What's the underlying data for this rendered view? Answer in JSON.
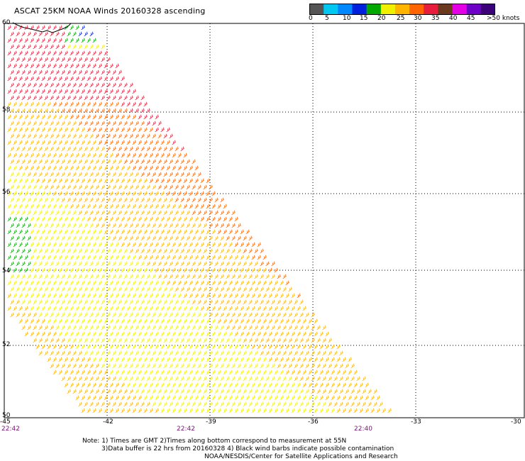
{
  "title": "ASCAT 25KM NOAA Winds 20160328 ascending",
  "legend": {
    "labels": [
      "0",
      "5",
      "10",
      "15",
      "20",
      "25",
      "30",
      "35",
      "40",
      "45",
      ">50 knots"
    ],
    "colors": [
      "#555555",
      "#00c8f0",
      "#0088ff",
      "#0020e0",
      "#00a800",
      "#f0f000",
      "#ffb400",
      "#ff6400",
      "#e61e3c",
      "#6b3a1e",
      "#e600e6",
      "#6e00c8",
      "#3c0078"
    ]
  },
  "axes": {
    "lon_ticks": [
      "-45",
      "-42",
      "-39",
      "-36",
      "-33",
      "-30"
    ],
    "lat_ticks": [
      "60",
      "58",
      "56",
      "54",
      "52",
      "50"
    ]
  },
  "times": [
    "22:42",
    "22:42",
    "22:40"
  ],
  "notes": [
    "Note: 1) Times are GMT 2)Times along bottom correspond to measurement at 55N",
    "3)Data buffer is 22 hrs from 20160328 4) Black wind barbs indicate possible contamination",
    "NOAA/NESDIS/Center for Satellite Applications and Research"
  ]
}
